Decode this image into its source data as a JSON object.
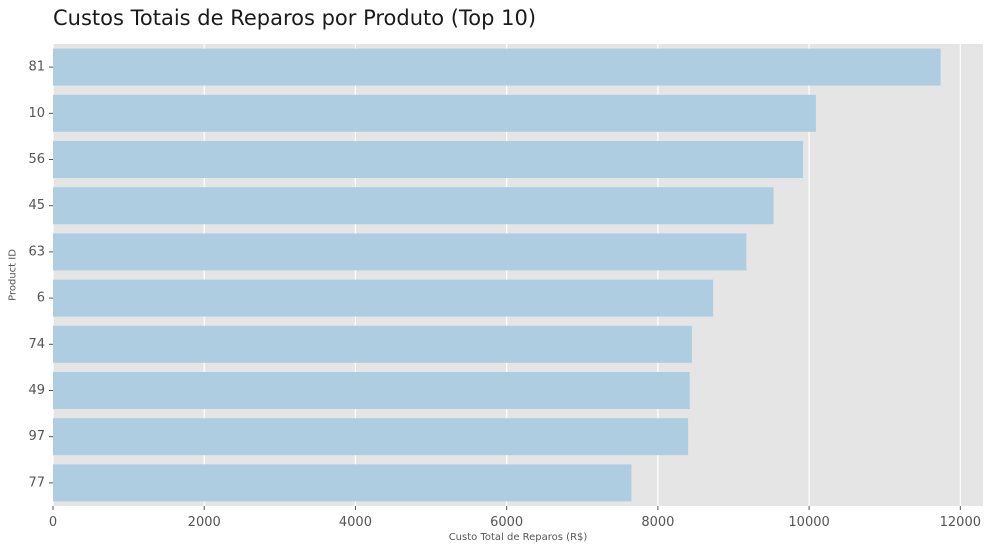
{
  "chart_data": {
    "type": "bar",
    "orientation": "horizontal",
    "title": "Custos Totais de Reparos por Produto (Top 10)",
    "xlabel": "Custo Total de Reparos (R$)",
    "ylabel": "Product ID",
    "categories": [
      "81",
      "10",
      "56",
      "45",
      "63",
      "6",
      "74",
      "49",
      "97",
      "77"
    ],
    "values": [
      11740,
      10090,
      9920,
      9530,
      9170,
      8730,
      8450,
      8420,
      8400,
      7650
    ],
    "xlim": [
      0,
      12300
    ],
    "xticks": [
      0,
      2000,
      4000,
      6000,
      8000,
      10000,
      12000
    ],
    "xtick_labels": [
      "0",
      "2000",
      "4000",
      "6000",
      "8000",
      "10000",
      "12000"
    ],
    "grid": true,
    "bar_color": "#aecde0",
    "background_color": "#e5e5e5",
    "grid_color": "#ffffff"
  }
}
